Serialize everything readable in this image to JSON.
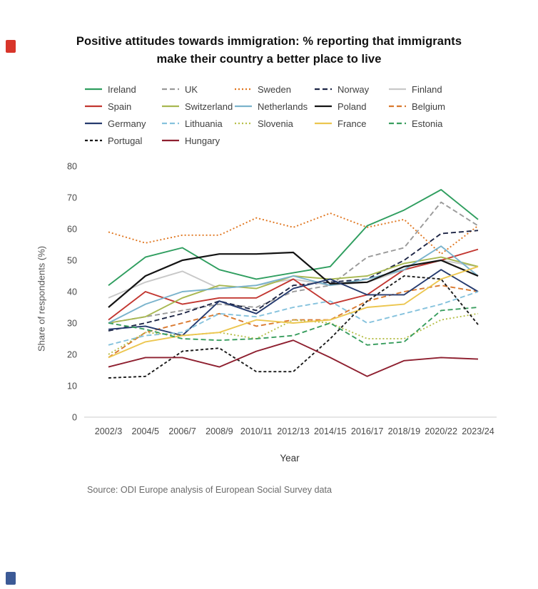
{
  "page": {
    "top_logo_color": "#d8352a",
    "bottom_logo_color": "#3c5a96"
  },
  "chart_data": {
    "type": "line",
    "title": "Positive attitudes towards immigration: % reporting that immigrants make their country a better place to live",
    "xlabel": "Year",
    "ylabel": "Share of respondents (%)",
    "source": "Source: ODI Europe analysis of European Social Survey data",
    "ylim": [
      0,
      80
    ],
    "yticks": [
      0,
      10,
      20,
      30,
      40,
      50,
      60,
      70,
      80
    ],
    "grid": false,
    "legend_position": "top",
    "categories": [
      "2002/3",
      "2004/5",
      "2006/7",
      "2008/9",
      "2010/11",
      "2012/13",
      "2014/15",
      "2016/17",
      "2018/19",
      "2020/22",
      "2023/24"
    ],
    "series": [
      {
        "name": "Ireland",
        "color": "#2f9e5f",
        "dash": "solid",
        "values": [
          42,
          51,
          54,
          47,
          44,
          46,
          48,
          61,
          66,
          72.5,
          63
        ]
      },
      {
        "name": "UK",
        "color": "#9a9a9a",
        "dash": "dashed",
        "values": [
          30,
          32,
          34,
          36,
          35,
          40,
          42,
          51,
          54,
          68.5,
          61
        ]
      },
      {
        "name": "Sweden",
        "color": "#e0761f",
        "dash": "dotted",
        "values": [
          59,
          55.5,
          58,
          58,
          63.5,
          60.5,
          65,
          60.5,
          63,
          52,
          61
        ]
      },
      {
        "name": "Norway",
        "color": "#1d2545",
        "dash": "dashed",
        "values": [
          27.5,
          30,
          33,
          37,
          34,
          42,
          43,
          44,
          50,
          58.5,
          59.5
        ]
      },
      {
        "name": "Finland",
        "color": "#c8c8c8",
        "dash": "solid",
        "values": [
          38,
          43,
          46.5,
          41,
          42,
          44,
          42,
          43,
          47,
          50,
          48
        ]
      },
      {
        "name": "Spain",
        "color": "#c23630",
        "dash": "solid",
        "values": [
          31,
          40,
          36,
          38,
          38,
          44,
          36,
          39,
          47,
          50,
          53.5
        ]
      },
      {
        "name": "Switzerland",
        "color": "#a8b851",
        "dash": "solid",
        "values": [
          30,
          32,
          38,
          42,
          41,
          45,
          44,
          45,
          49,
          51,
          48
        ]
      },
      {
        "name": "Netherlands",
        "color": "#7ab3cc",
        "dash": "solid",
        "values": [
          30,
          36,
          40,
          41,
          42,
          45,
          42,
          44,
          47,
          54.5,
          45
        ]
      },
      {
        "name": "Poland",
        "color": "#141414",
        "dash": "solid",
        "values": [
          35,
          45,
          50,
          52,
          52,
          52.5,
          42.5,
          43,
          48,
          50,
          45
        ]
      },
      {
        "name": "Belgium",
        "color": "#d9792f",
        "dash": "dashed",
        "values": [
          19,
          27,
          30,
          33,
          29,
          31,
          31,
          37,
          40,
          42,
          40
        ]
      },
      {
        "name": "Germany",
        "color": "#253a6e",
        "dash": "solid",
        "values": [
          28,
          29,
          26,
          37,
          33,
          41,
          44,
          39,
          39,
          47,
          40
        ]
      },
      {
        "name": "Lithuania",
        "color": "#85c2dd",
        "dash": "dashed",
        "values": [
          23,
          26,
          27,
          33,
          32,
          35,
          37,
          30,
          33,
          36,
          40
        ]
      },
      {
        "name": "Slovenia",
        "color": "#b7bf4a",
        "dash": "dotted",
        "values": [
          20,
          27,
          26,
          27,
          25,
          31,
          30,
          25,
          25,
          31,
          33
        ]
      },
      {
        "name": "France",
        "color": "#ecc64f",
        "dash": "solid",
        "values": [
          19,
          24,
          26,
          27,
          31,
          30,
          31,
          35,
          36,
          44,
          48
        ]
      },
      {
        "name": "Estonia",
        "color": "#3a9e5f",
        "dash": "dashed",
        "values": [
          30,
          28,
          25,
          24.5,
          25,
          26,
          30,
          23,
          24,
          34,
          35
        ]
      },
      {
        "name": "Portugal",
        "color": "#1a1a1a",
        "dash": "dashed-fine",
        "values": [
          12.5,
          13,
          21,
          22,
          14.5,
          14.5,
          25,
          37,
          45,
          44,
          29.5
        ]
      },
      {
        "name": "Hungary",
        "color": "#8e1f2f",
        "dash": "solid",
        "values": [
          16,
          19,
          19,
          16,
          21,
          24.5,
          19,
          13,
          18,
          19,
          18.5
        ]
      }
    ]
  }
}
